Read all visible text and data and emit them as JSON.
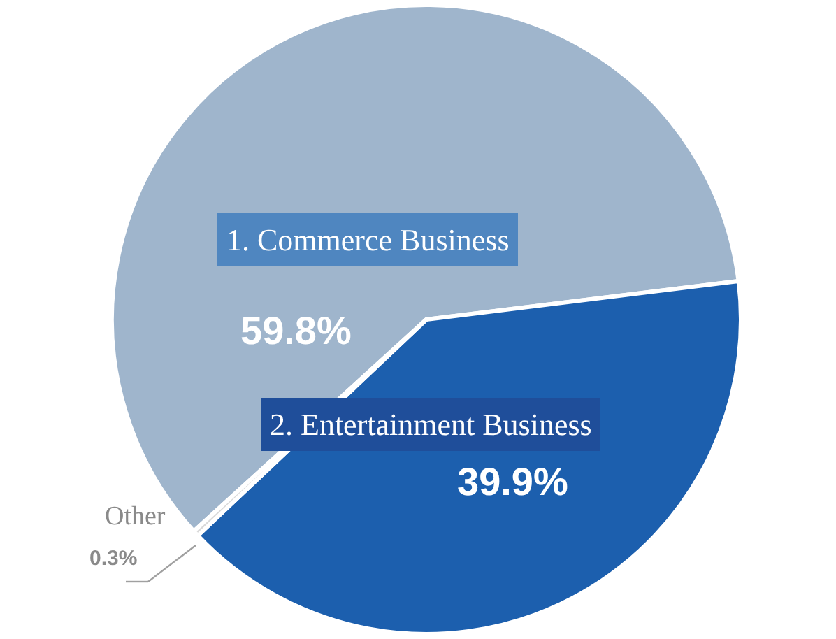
{
  "chart_data": {
    "type": "pie",
    "categories": [
      "1. Commerce Business",
      "2. Entertainment Business",
      "Other"
    ],
    "values": [
      59.8,
      39.9,
      0.3
    ],
    "colors": [
      "#9fb5cc",
      "#1c5fae",
      "#d9d9d9"
    ],
    "value_labels": [
      "59.8%",
      "39.9%",
      "0.3%"
    ]
  }
}
